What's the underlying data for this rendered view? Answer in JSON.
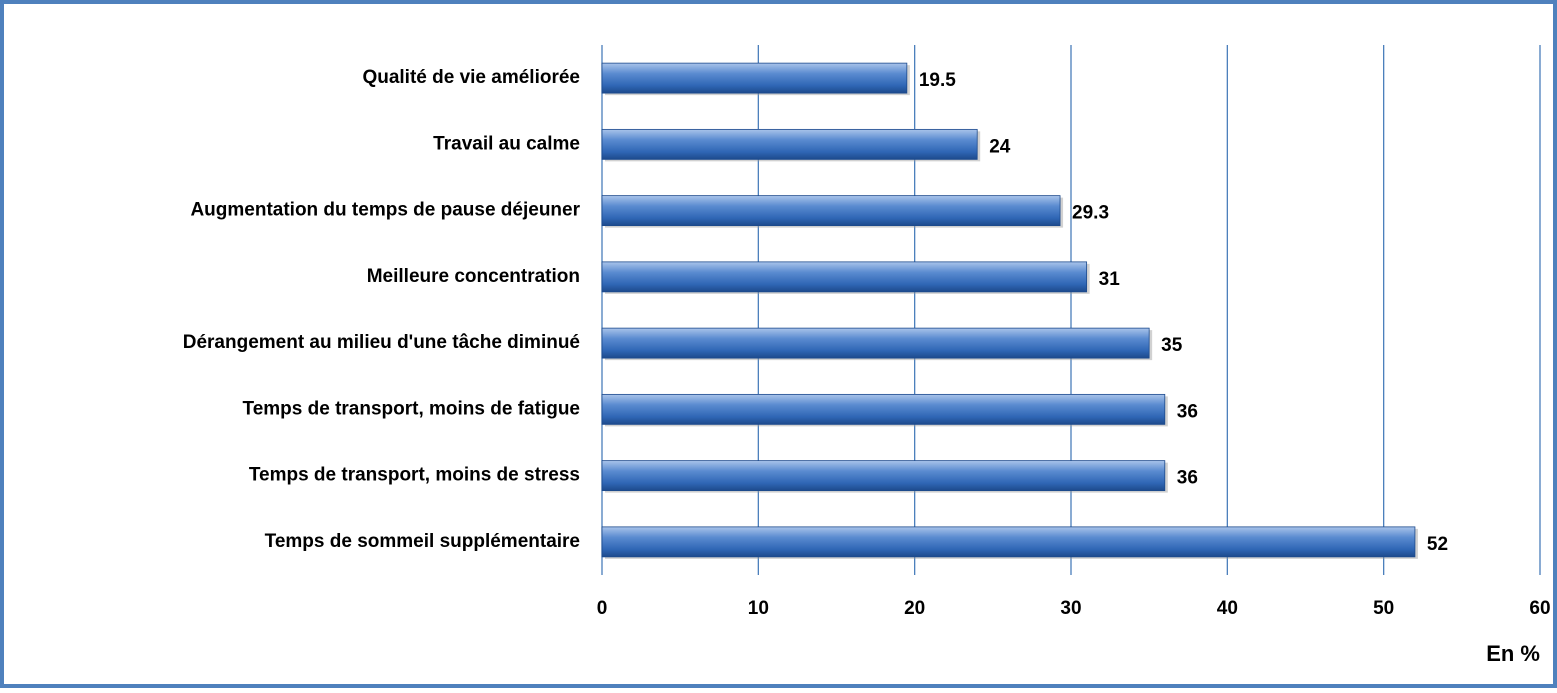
{
  "chart_data": {
    "type": "bar",
    "orientation": "horizontal",
    "categories": [
      "Qualité de vie améliorée",
      "Travail au calme",
      "Augmentation du temps de pause déjeuner",
      "Meilleure concentration",
      "Dérangement au milieu d'une tâche diminué",
      "Temps de transport, moins de fatigue",
      "Temps de transport, moins de stress",
      "Temps de sommeil supplémentaire"
    ],
    "values": [
      19.5,
      24,
      29.3,
      31,
      35,
      36,
      36,
      52
    ],
    "color": "#4a7ebb",
    "xlabel": "En %",
    "xlim": [
      0,
      60
    ],
    "xticks": [
      0,
      10,
      20,
      30,
      40,
      50,
      60
    ],
    "grid": true
  }
}
